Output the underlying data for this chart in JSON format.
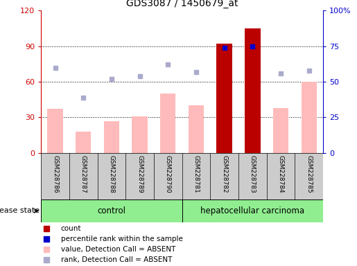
{
  "title": "GDS3087 / 1450679_at",
  "samples": [
    "GSM228786",
    "GSM228787",
    "GSM228788",
    "GSM228789",
    "GSM228790",
    "GSM228781",
    "GSM228782",
    "GSM228783",
    "GSM228784",
    "GSM228785"
  ],
  "bar_values": [
    37,
    18,
    27,
    31,
    50,
    40,
    92,
    105,
    38,
    60
  ],
  "bar_colors": [
    "#ffbbbb",
    "#ffbbbb",
    "#ffbbbb",
    "#ffbbbb",
    "#ffbbbb",
    "#ffbbbb",
    "#bb0000",
    "#bb0000",
    "#ffbbbb",
    "#ffbbbb"
  ],
  "rank_dots": [
    60,
    39,
    52,
    54,
    62,
    57,
    74,
    75,
    56,
    58
  ],
  "rank_colors": [
    "#aaaacc",
    "#aaaacc",
    "#aaaacc",
    "#aaaacc",
    "#aaaacc",
    "#aaaacc",
    "#0000cc",
    "#0000cc",
    "#aaaacc",
    "#aaaacc"
  ],
  "left_ylim": [
    0,
    120
  ],
  "right_ylim": [
    0,
    100
  ],
  "left_yticks": [
    0,
    30,
    60,
    90,
    120
  ],
  "right_yticks": [
    0,
    25,
    50,
    75,
    100
  ],
  "right_yticklabels": [
    "0",
    "25",
    "50",
    "75",
    "100%"
  ],
  "grid_lines": [
    30,
    60,
    90
  ],
  "n_control": 5,
  "n_cancer": 5,
  "control_label": "control",
  "cancer_label": "hepatocellular carcinoma",
  "disease_state_label": "disease state",
  "legend_items": [
    {
      "label": "count",
      "color": "#bb0000"
    },
    {
      "label": "percentile rank within the sample",
      "color": "#0000cc"
    },
    {
      "label": "value, Detection Call = ABSENT",
      "color": "#ffbbbb"
    },
    {
      "label": "rank, Detection Call = ABSENT",
      "color": "#aaaacc"
    }
  ],
  "left_axis_color": "#cc0000",
  "right_axis_color": "#0000cc",
  "bar_width": 0.55,
  "xlabel_area_color": "#cccccc",
  "group_color": "#90ee90"
}
